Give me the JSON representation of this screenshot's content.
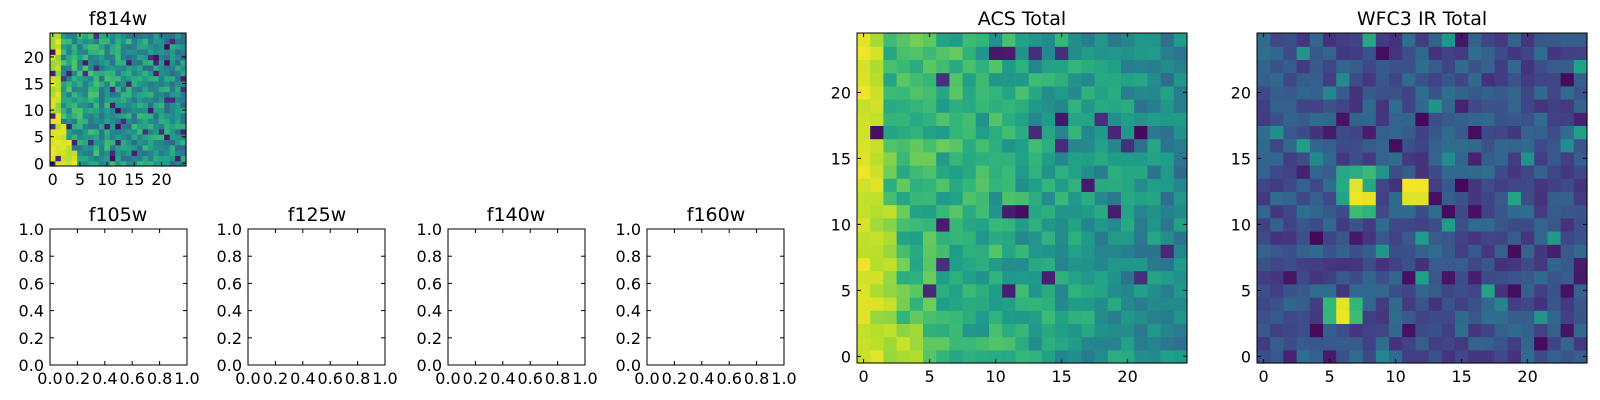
{
  "chart_data": [
    {
      "type": "heatmap",
      "title": "f814w",
      "xticks": [
        "0",
        "5",
        "10",
        "15",
        "20"
      ],
      "yticks": [
        "0",
        "5",
        "10",
        "15",
        "20"
      ],
      "xlim": [
        -0.5,
        24.5
      ],
      "ylim": [
        -0.5,
        24.5
      ],
      "grid_size": [
        25,
        25
      ],
      "colormap": "viridis",
      "pattern": "bright yellow band along left edge, widening toward bottom-left; noisy green-teal elsewhere with scattered dark pixels"
    },
    {
      "type": "heatmap",
      "title": "f105w",
      "empty": true,
      "xticks": [
        "0.0",
        "0.2",
        "0.4",
        "0.6",
        "0.8",
        "1.0"
      ],
      "yticks": [
        "0.0",
        "0.2",
        "0.4",
        "0.6",
        "0.8",
        "1.0"
      ],
      "xlim": [
        0,
        1
      ],
      "ylim": [
        0,
        1
      ]
    },
    {
      "type": "heatmap",
      "title": "f125w",
      "empty": true,
      "xticks": [
        "0.0",
        "0.2",
        "0.4",
        "0.6",
        "0.8",
        "1.0"
      ],
      "yticks": [
        "0.0",
        "0.2",
        "0.4",
        "0.6",
        "0.8",
        "1.0"
      ],
      "xlim": [
        0,
        1
      ],
      "ylim": [
        0,
        1
      ]
    },
    {
      "type": "heatmap",
      "title": "f140w",
      "empty": true,
      "xticks": [
        "0.0",
        "0.2",
        "0.4",
        "0.6",
        "0.8",
        "1.0"
      ],
      "yticks": [
        "0.0",
        "0.2",
        "0.4",
        "0.6",
        "0.8",
        "1.0"
      ],
      "xlim": [
        0,
        1
      ],
      "ylim": [
        0,
        1
      ]
    },
    {
      "type": "heatmap",
      "title": "f160w",
      "empty": true,
      "xticks": [
        "0.0",
        "0.2",
        "0.4",
        "0.6",
        "0.8",
        "1.0"
      ],
      "yticks": [
        "0.0",
        "0.2",
        "0.4",
        "0.6",
        "0.8",
        "1.0"
      ],
      "xlim": [
        0,
        1
      ],
      "ylim": [
        0,
        1
      ]
    },
    {
      "type": "heatmap",
      "title": "ACS Total",
      "xticks": [
        "0",
        "5",
        "10",
        "15",
        "20"
      ],
      "yticks": [
        "0",
        "5",
        "10",
        "15",
        "20"
      ],
      "xlim": [
        -0.5,
        24.5
      ],
      "ylim": [
        -0.5,
        24.5
      ],
      "grid_size": [
        25,
        25
      ],
      "colormap": "viridis",
      "pattern": "bright yellow column at x=0-1 (brightest at y 5-11), yellow-green left side fading to green-teal on the right; scattered dark purple pixels"
    },
    {
      "type": "heatmap",
      "title": "WFC3 IR Total",
      "xticks": [
        "0",
        "5",
        "10",
        "15",
        "20"
      ],
      "yticks": [
        "0",
        "5",
        "10",
        "15",
        "20"
      ],
      "xlim": [
        -0.5,
        24.5
      ],
      "ylim": [
        -0.5,
        24.5
      ],
      "grid_size": [
        25,
        25
      ],
      "colormap": "viridis",
      "pattern": "dark blue-teal noise background",
      "hotspots": [
        {
          "x": 7,
          "y": 13
        },
        {
          "x": 7.5,
          "y": 12
        },
        {
          "x": 11.5,
          "y": 12.5
        },
        {
          "x": 6,
          "y": 3.5
        }
      ]
    }
  ]
}
